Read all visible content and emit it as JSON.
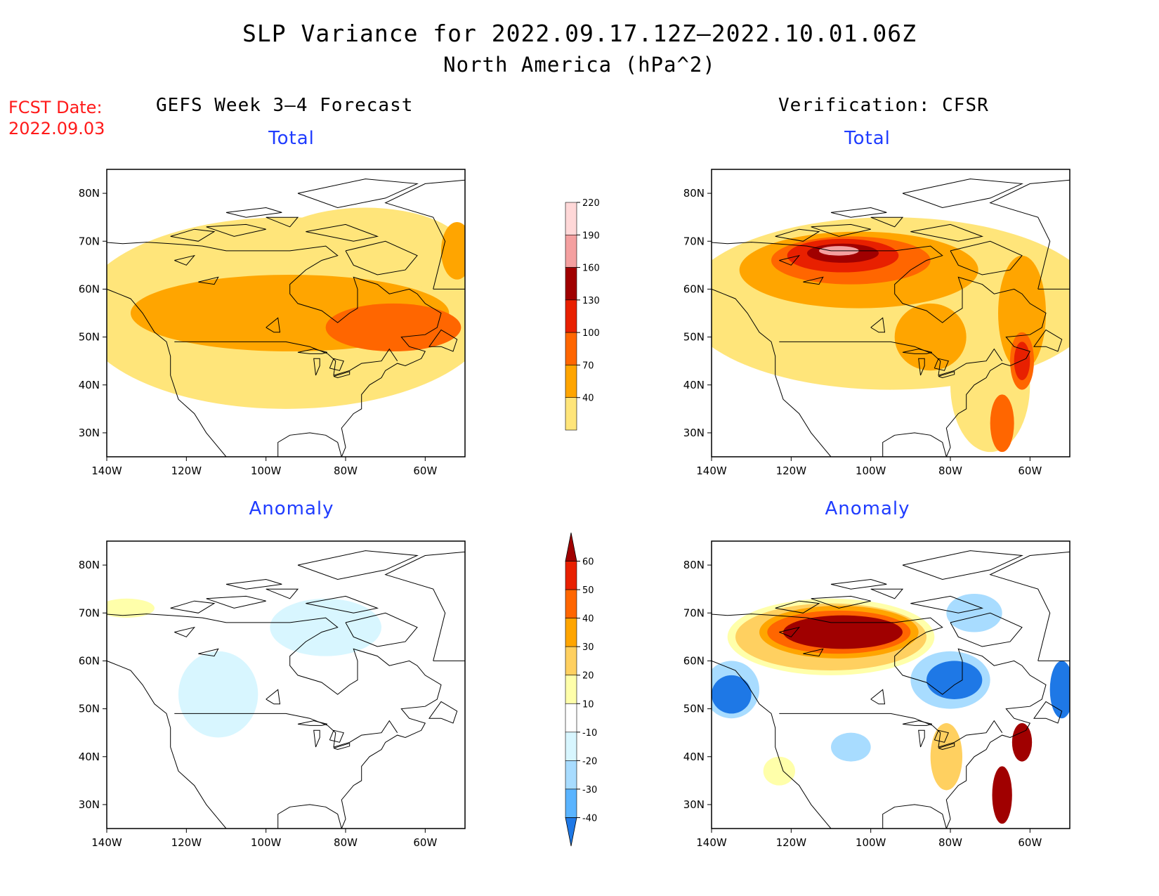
{
  "title": {
    "line1": "SLP Variance for 2022.09.17.12Z–2022.10.01.06Z",
    "line2": "North America (hPa^2)"
  },
  "fcst_date": {
    "label": "FCST Date:",
    "value": "2022.09.03"
  },
  "columns": [
    {
      "heading": "GEFS Week 3–4 Forecast"
    },
    {
      "heading": "Verification: CFSR"
    }
  ],
  "panels": [
    {
      "heading": "Total",
      "scale": "total",
      "features": [
        {
          "lon": -95,
          "lat": 55,
          "rx": 52,
          "ry": 20,
          "c": "#ffe57a"
        },
        {
          "lon": -75,
          "lat": 68,
          "rx": 25,
          "ry": 9,
          "c": "#ffe57a"
        },
        {
          "lon": -94,
          "lat": 55,
          "rx": 40,
          "ry": 8,
          "c": "#ffa500"
        },
        {
          "lon": -68,
          "lat": 52,
          "rx": 17,
          "ry": 5,
          "c": "#ff6600"
        },
        {
          "lon": -52,
          "lat": 68,
          "rx": 4,
          "ry": 6,
          "c": "#ffa500"
        }
      ]
    },
    {
      "heading": "Total",
      "scale": "total",
      "features": [
        {
          "lon": -95,
          "lat": 57,
          "rx": 52,
          "ry": 18,
          "c": "#ffe57a"
        },
        {
          "lon": -70,
          "lat": 40,
          "rx": 10,
          "ry": 14,
          "c": "#ffe57a"
        },
        {
          "lon": -103,
          "lat": 64,
          "rx": 30,
          "ry": 8,
          "c": "#ffa500"
        },
        {
          "lon": -85,
          "lat": 50,
          "rx": 9,
          "ry": 7,
          "c": "#ffa500"
        },
        {
          "lon": -62,
          "lat": 55,
          "rx": 6,
          "ry": 12,
          "c": "#ffa500"
        },
        {
          "lon": -105,
          "lat": 66,
          "rx": 20,
          "ry": 5,
          "c": "#ff6600"
        },
        {
          "lon": -62,
          "lat": 45,
          "rx": 3,
          "ry": 6,
          "c": "#ff6600"
        },
        {
          "lon": -67,
          "lat": 32,
          "rx": 3,
          "ry": 6,
          "c": "#ff6600"
        },
        {
          "lon": -107,
          "lat": 67,
          "rx": 14,
          "ry": 3.5,
          "c": "#e82000"
        },
        {
          "lon": -62,
          "lat": 45,
          "rx": 2,
          "ry": 4,
          "c": "#e82000"
        },
        {
          "lon": -107,
          "lat": 67.5,
          "rx": 9,
          "ry": 2,
          "c": "#a00000"
        },
        {
          "lon": -108,
          "lat": 68,
          "rx": 5,
          "ry": 1,
          "c": "#f4a0a0"
        }
      ]
    },
    {
      "heading": "Anomaly",
      "scale": "anomaly",
      "features": [
        {
          "lon": -85,
          "lat": 67,
          "rx": 14,
          "ry": 6,
          "c": "#d8f6ff"
        },
        {
          "lon": -112,
          "lat": 53,
          "rx": 10,
          "ry": 9,
          "c": "#d8f6ff"
        },
        {
          "lon": -135,
          "lat": 71,
          "rx": 7,
          "ry": 2,
          "c": "#ffffaa"
        }
      ]
    },
    {
      "heading": "Anomaly",
      "scale": "anomaly",
      "features": [
        {
          "lon": -110,
          "lat": 65,
          "rx": 26,
          "ry": 8,
          "c": "#ffffaa"
        },
        {
          "lon": -110,
          "lat": 65,
          "rx": 24,
          "ry": 7,
          "c": "#ffd060"
        },
        {
          "lon": -108,
          "lat": 66,
          "rx": 20,
          "ry": 5.5,
          "c": "#ffa500"
        },
        {
          "lon": -108,
          "lat": 66,
          "rx": 18,
          "ry": 4.5,
          "c": "#ff6600"
        },
        {
          "lon": -107,
          "lat": 66,
          "rx": 15,
          "ry": 3.5,
          "c": "#a00000"
        },
        {
          "lon": -135,
          "lat": 54,
          "rx": 7,
          "ry": 6,
          "c": "#a8dcff"
        },
        {
          "lon": -135,
          "lat": 53,
          "rx": 5,
          "ry": 4,
          "c": "#1e78e6"
        },
        {
          "lon": -80,
          "lat": 56,
          "rx": 10,
          "ry": 6,
          "c": "#a8dcff"
        },
        {
          "lon": -79,
          "lat": 56,
          "rx": 7,
          "ry": 4,
          "c": "#1e78e6"
        },
        {
          "lon": -74,
          "lat": 70,
          "rx": 7,
          "ry": 4,
          "c": "#a8dcff"
        },
        {
          "lon": -52,
          "lat": 54,
          "rx": 3,
          "ry": 6,
          "c": "#1e78e6"
        },
        {
          "lon": -105,
          "lat": 42,
          "rx": 5,
          "ry": 3,
          "c": "#a8dcff"
        },
        {
          "lon": -81,
          "lat": 40,
          "rx": 4,
          "ry": 7,
          "c": "#ffd060"
        },
        {
          "lon": -62,
          "lat": 43,
          "rx": 2.5,
          "ry": 4,
          "c": "#a00000"
        },
        {
          "lon": -67,
          "lat": 32,
          "rx": 2.5,
          "ry": 6,
          "c": "#a00000"
        },
        {
          "lon": -123,
          "lat": 37,
          "rx": 4,
          "ry": 3,
          "c": "#ffffaa"
        }
      ]
    }
  ],
  "map_axes": {
    "lon_ticks": [
      "140W",
      "120W",
      "100W",
      "80W",
      "60W"
    ],
    "lat_ticks": [
      "80N",
      "70N",
      "60N",
      "50N",
      "40N",
      "30N"
    ],
    "lon_range": [
      -140,
      -50
    ],
    "lat_range": [
      25,
      85
    ]
  },
  "colorbars": {
    "total": {
      "labels": [
        "40",
        "70",
        "100",
        "130",
        "160",
        "190",
        "220"
      ],
      "colors": [
        "#ffe57a",
        "#ffa500",
        "#ff6600",
        "#e82000",
        "#a00000",
        "#f4a0a0",
        "#ffd8d8"
      ]
    },
    "anomaly": {
      "labels": [
        "-40",
        "-30",
        "-20",
        "-10",
        "10",
        "20",
        "30",
        "40",
        "50",
        "60"
      ],
      "colors": [
        "#1e78e6",
        "#5ab4ff",
        "#a8dcff",
        "#d8f6ff",
        "#ffffff",
        "#ffffaa",
        "#ffd060",
        "#ffa500",
        "#ff6600",
        "#e82000",
        "#a00000"
      ]
    }
  }
}
